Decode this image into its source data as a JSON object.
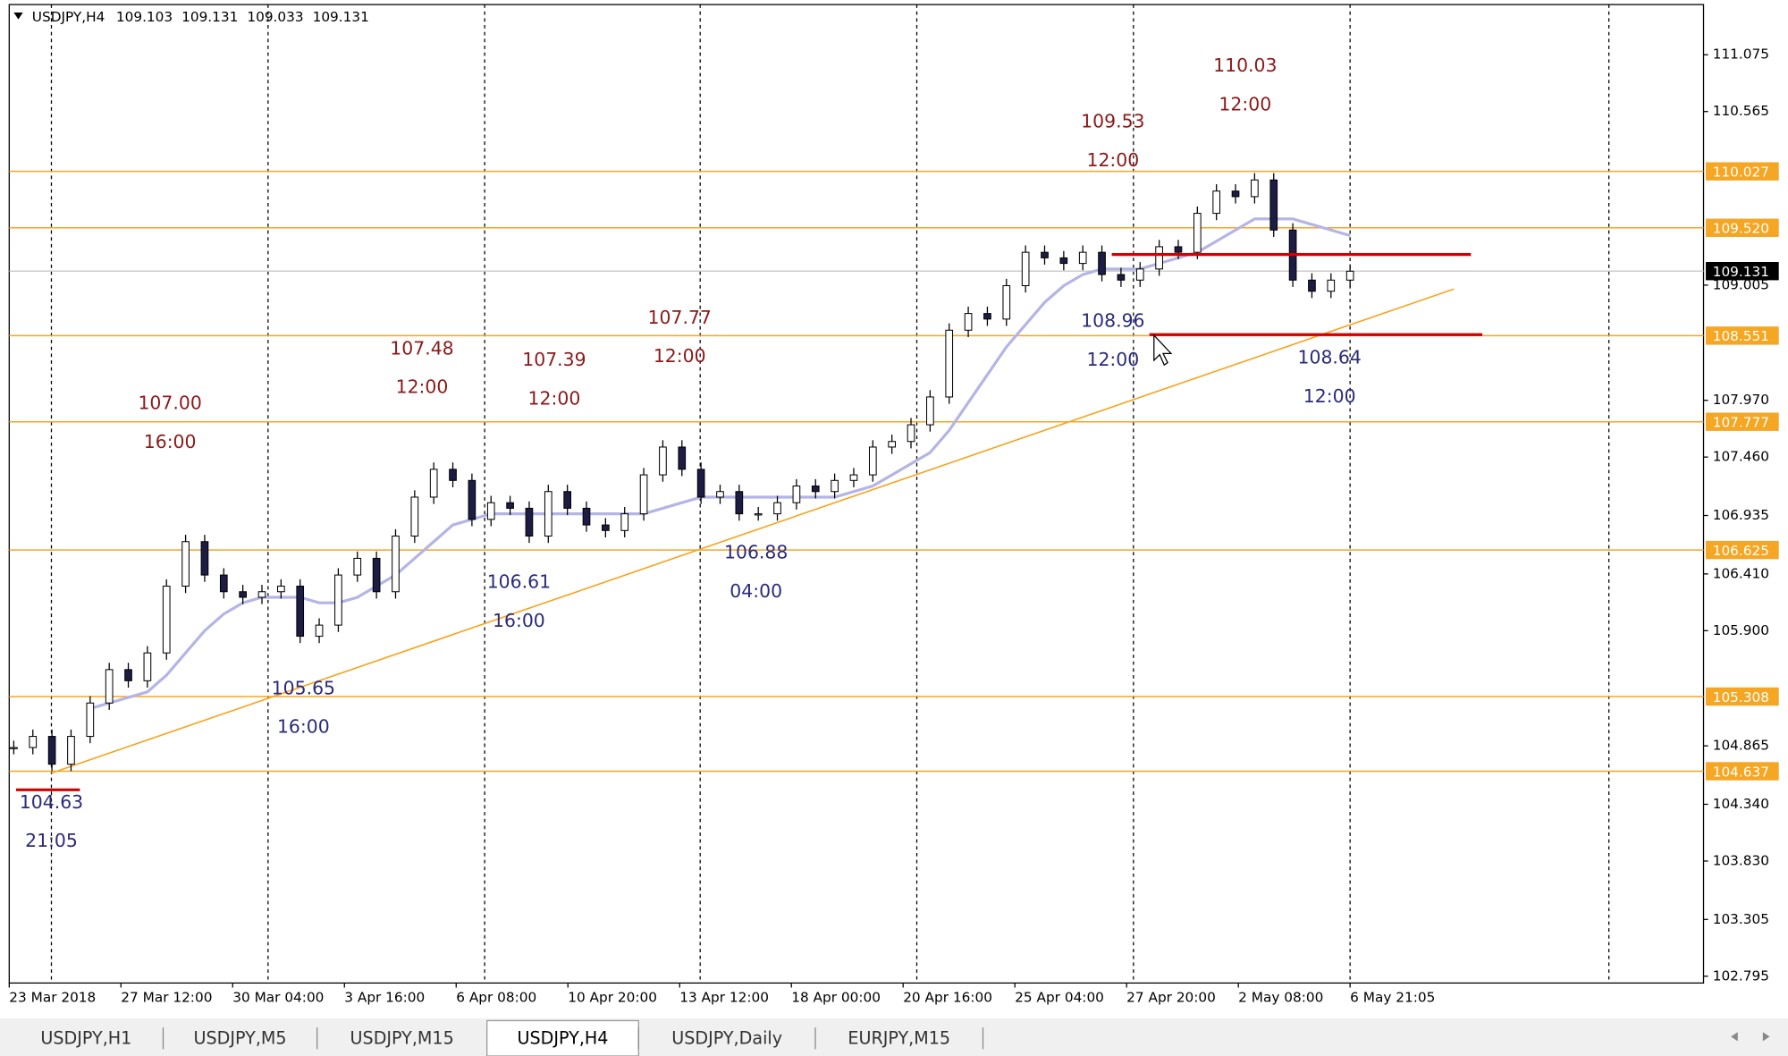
{
  "header": {
    "symbol": "USDJPY,H4",
    "ohlc": [
      109.103,
      109.131,
      109.033,
      109.131
    ]
  },
  "chart_data": {
    "type": "candlestick",
    "closes": [
      104.85,
      104.95,
      104.7,
      104.95,
      105.25,
      105.55,
      105.45,
      105.7,
      106.3,
      106.7,
      106.4,
      106.25,
      106.2,
      106.25,
      106.3,
      105.85,
      105.95,
      106.4,
      106.55,
      106.25,
      106.75,
      107.1,
      107.35,
      107.25,
      106.9,
      107.05,
      107.0,
      106.75,
      107.15,
      107.0,
      106.85,
      106.8,
      106.95,
      107.3,
      107.55,
      107.35,
      107.1,
      107.15,
      106.95,
      106.95,
      107.05,
      107.2,
      107.15,
      107.25,
      107.3,
      107.55,
      107.6,
      107.75,
      108.0,
      108.6,
      108.75,
      108.7,
      109.0,
      109.3,
      109.25,
      109.2,
      109.3,
      109.1,
      109.05,
      109.15,
      109.35,
      109.3,
      109.65,
      109.85,
      109.8,
      109.95,
      109.5,
      109.05,
      108.95,
      109.05,
      109.13
    ],
    "ma": [
      null,
      null,
      null,
      null,
      105.2,
      105.25,
      105.3,
      105.35,
      105.5,
      105.7,
      105.9,
      106.05,
      106.15,
      106.2,
      106.2,
      106.2,
      106.15,
      106.15,
      106.2,
      106.3,
      106.4,
      106.55,
      106.7,
      106.85,
      106.9,
      106.95,
      106.95,
      106.95,
      106.95,
      106.95,
      106.95,
      106.95,
      106.95,
      106.95,
      107.0,
      107.05,
      107.1,
      107.1,
      107.1,
      107.1,
      107.1,
      107.1,
      107.1,
      107.1,
      107.15,
      107.2,
      107.3,
      107.4,
      107.5,
      107.7,
      107.95,
      108.2,
      108.45,
      108.65,
      108.85,
      109.0,
      109.1,
      109.15,
      109.15,
      109.15,
      109.2,
      109.25,
      109.3,
      109.4,
      109.5,
      109.6,
      109.6,
      109.6,
      109.55,
      109.5,
      109.45
    ],
    "ma_color": "#b4b4e6",
    "bull_color": "#ffffff",
    "bear_color": "#1c1c44",
    "ylim": [
      102.734,
      111.526
    ],
    "yticks": [
      111.075,
      110.565,
      109.005,
      {
        "value": 107.97,
        "label": "107.970"
      },
      {
        "value": 107.46,
        "label": "107.460"
      },
      106.935,
      {
        "value": 106.41,
        "label": "106.410"
      },
      {
        "value": 105.9,
        "label": "105.900"
      },
      104.865,
      {
        "value": 104.34,
        "label": "104.340"
      },
      {
        "value": 103.83,
        "label": "103.830"
      },
      103.305,
      102.795
    ],
    "levels": [
      110.027,
      {
        "value": 109.52,
        "label": "109.520"
      },
      108.551,
      107.777,
      106.625,
      105.308,
      104.637
    ],
    "level_color": "#f5a623",
    "current_price": 109.131,
    "red_levels": [
      109.28,
      108.56,
      104.47
    ],
    "red_color": "#d40000",
    "trendline": [
      104.62,
      108.97
    ],
    "time_labels": [
      "23 Mar 2018",
      "27 Mar 12:00",
      "30 Mar 04:00",
      "3 Apr 16:00",
      "6 Apr 08:00",
      "10 Apr 20:00",
      "13 Apr 12:00",
      "18 Apr 00:00",
      "20 Apr 16:00",
      "25 Apr 04:00",
      "27 Apr 20:00",
      "2 May 08:00",
      "6 May 21:05"
    ],
    "annotations": [
      {
        "price": "107.00",
        "time": "16:00",
        "color": "#8b1a1a"
      },
      {
        "price": "107.48",
        "time": "12:00",
        "color": "#8b1a1a"
      },
      {
        "price": "107.39",
        "time": "12:00",
        "color": "#8b1a1a"
      },
      {
        "price": "107.77",
        "time": "12:00",
        "color": "#8b1a1a"
      },
      {
        "price": "109.53",
        "time": "12:00",
        "color": "#8b1a1a"
      },
      {
        "price": "110.03",
        "time": "12:00",
        "color": "#8b1a1a"
      },
      {
        "price": "104.63",
        "time": "21:05",
        "color": "#2b2b7a"
      },
      {
        "price": "105.65",
        "time": "16:00",
        "color": "#2b2b7a"
      },
      {
        "price": "106.61",
        "time": "16:00",
        "color": "#2b2b7a"
      },
      {
        "price": "106.88",
        "time": "04:00",
        "color": "#2b2b7a"
      },
      {
        "price": "108.96",
        "time": "12:00",
        "color": "#2b2b7a"
      },
      {
        "price": "108.64",
        "time": "12:00",
        "color": "#2b2b7a"
      }
    ]
  },
  "tabs": {
    "items": [
      "USDJPY,H1",
      "USDJPY,M5",
      "USDJPY,M15",
      "USDJPY,H4",
      "USDJPY,Daily",
      "EURJPY,M15"
    ],
    "active": 3
  }
}
